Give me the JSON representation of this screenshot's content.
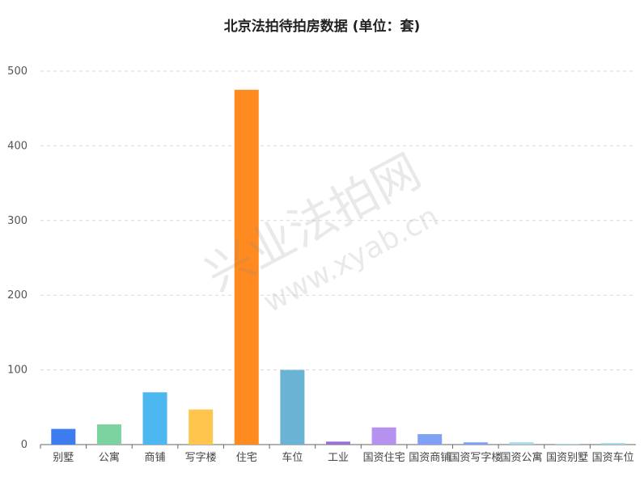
{
  "chart_data": {
    "type": "bar",
    "title": "北京法拍待拍房数据 (单位：套)",
    "xlabel": "",
    "ylabel": "",
    "ylim": [
      0,
      500
    ],
    "yticks": [
      0,
      100,
      200,
      300,
      400,
      500
    ],
    "grid": true,
    "categories": [
      "别墅",
      "公寓",
      "商铺",
      "写字楼",
      "住宅",
      "车位",
      "工业",
      "国资住宅",
      "国资商铺",
      "国资写字楼",
      "国资公寓",
      "国资别墅",
      "国资车位"
    ],
    "values": [
      21,
      27,
      70,
      47,
      475,
      100,
      4,
      23,
      14,
      3,
      3,
      1,
      2
    ],
    "colors": [
      "#3d7cf0",
      "#7dd3a0",
      "#4db8f0",
      "#ffc54d",
      "#ff8a1f",
      "#6ab3d4",
      "#9a6fd6",
      "#b592f0",
      "#7fa1f5",
      "#7fa1f5",
      "#a3d9e8",
      "#a3d9e8",
      "#a3d9e8"
    ]
  },
  "watermark": {
    "main": "兴业法拍网",
    "url": "www.xyab.cn"
  }
}
